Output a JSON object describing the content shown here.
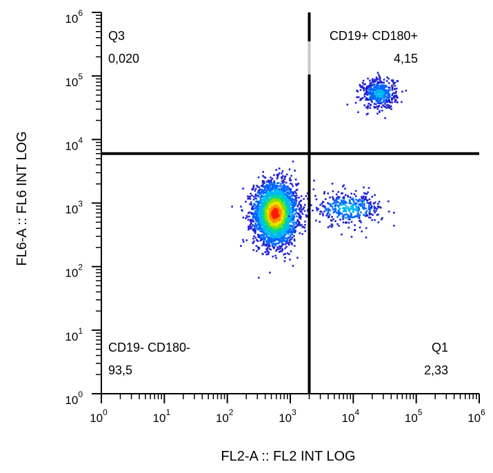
{
  "chart_data": {
    "type": "scatter",
    "subtype": "flow cytometry density dot plot with quadrant gates",
    "xlabel": "FL2-A :: FL2 INT LOG",
    "ylabel": "FL6-A :: FL6 INT LOG",
    "x_scale": "log",
    "y_scale": "log",
    "xlim": [
      1,
      1000000
    ],
    "ylim": [
      1,
      1000000
    ],
    "x_ticks": [
      {
        "base": "10",
        "exp": "0",
        "value": 1
      },
      {
        "base": "10",
        "exp": "1",
        "value": 10
      },
      {
        "base": "10",
        "exp": "2",
        "value": 100
      },
      {
        "base": "10",
        "exp": "3",
        "value": 1000
      },
      {
        "base": "10",
        "exp": "4",
        "value": 10000
      },
      {
        "base": "10",
        "exp": "5",
        "value": 100000
      },
      {
        "base": "10",
        "exp": "6",
        "value": 1000000
      }
    ],
    "y_ticks": [
      {
        "base": "10",
        "exp": "0",
        "value": 1
      },
      {
        "base": "10",
        "exp": "1",
        "value": 10
      },
      {
        "base": "10",
        "exp": "2",
        "value": 100
      },
      {
        "base": "10",
        "exp": "3",
        "value": 1000
      },
      {
        "base": "10",
        "exp": "4",
        "value": 10000
      },
      {
        "base": "10",
        "exp": "5",
        "value": 100000
      },
      {
        "base": "10",
        "exp": "6",
        "value": 1000000
      }
    ],
    "gates": {
      "x_threshold": 2000,
      "y_threshold": 6000
    },
    "quadrants": [
      {
        "name": "Q3",
        "value": "0,020",
        "position": "top-left"
      },
      {
        "name": "CD19+ CD180+",
        "value": "4,15",
        "position": "top-right"
      },
      {
        "name": "CD19- CD180-",
        "value": "93,5",
        "position": "bottom-left"
      },
      {
        "name": "Q1",
        "value": "2,33",
        "position": "bottom-right"
      }
    ],
    "populations": [
      {
        "center_x": 560,
        "center_y": 700,
        "spread_log_x": 0.17,
        "spread_log_y": 0.24,
        "events": 3000
      },
      {
        "center_x": 8000,
        "center_y": 850,
        "spread_log_x": 0.28,
        "spread_log_y": 0.13,
        "events": 380
      },
      {
        "center_x": 25000,
        "center_y": 55000,
        "spread_log_x": 0.14,
        "spread_log_y": 0.12,
        "events": 460
      }
    ],
    "density_colors": [
      "#1f1fd0",
      "#0066ff",
      "#00b8f0",
      "#00d898",
      "#88e000",
      "#f0e000",
      "#ff8a00",
      "#ff1a00"
    ],
    "grid": false
  }
}
